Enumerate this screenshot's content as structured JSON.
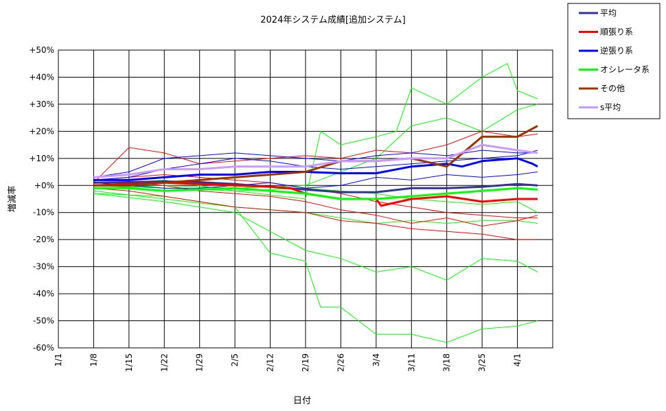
{
  "chart_data": {
    "type": "line",
    "title": "2024年システム成績[追加システム]",
    "xlabel": "日付",
    "ylabel": "増減率",
    "x_tick_labels": [
      "1/1",
      "1/8",
      "1/15",
      "1/22",
      "1/29",
      "2/5",
      "2/12",
      "2/19",
      "2/26",
      "3/4",
      "3/11",
      "3/18",
      "3/25",
      "4/1"
    ],
    "y_tick_labels": [
      "+50%",
      "+40%",
      "+30%",
      "+20%",
      "+10%",
      "+0%",
      "-10%",
      "-20%",
      "-30%",
      "-40%",
      "-50%",
      "-60%"
    ],
    "ylim": [
      -60,
      50
    ],
    "x_range_days": [
      1,
      99
    ],
    "grid": true,
    "legend_position": "top-right-outside",
    "series": [
      {
        "name": "平均",
        "color": "#333399",
        "x": [
          8,
          15,
          22,
          29,
          36,
          43,
          50,
          57,
          64,
          71,
          78,
          85,
          92,
          96
        ],
        "values": [
          1,
          1.2,
          1.5,
          1.2,
          0.5,
          -0.5,
          -1.5,
          -2.5,
          -2.5,
          -1,
          -1,
          -0.5,
          0.5,
          0
        ]
      },
      {
        "name": "順張り系",
        "color": "#ff0000",
        "x": [
          8,
          15,
          22,
          29,
          36,
          43,
          47,
          50,
          57,
          64,
          65,
          71,
          78,
          85,
          92,
          96
        ],
        "values": [
          0,
          0.5,
          1,
          0.5,
          0,
          -0.5,
          -1,
          -3,
          -5,
          -5,
          -7.5,
          -5,
          -4,
          -6,
          -5,
          -5
        ]
      },
      {
        "name": "逆張り系",
        "color": "#0000ff",
        "x": [
          8,
          15,
          22,
          29,
          36,
          43,
          50,
          57,
          64,
          71,
          78,
          81,
          85,
          92,
          95,
          96
        ],
        "values": [
          2,
          2,
          3,
          4,
          4,
          5,
          5,
          4.5,
          4.5,
          7,
          8,
          7,
          9,
          10,
          8,
          7
        ]
      },
      {
        "name": "オシレータ系",
        "color": "#00ff00",
        "x": [
          8,
          15,
          22,
          29,
          36,
          43,
          50,
          57,
          64,
          71,
          78,
          85,
          92,
          96
        ],
        "values": [
          -1,
          -1,
          -2,
          -1.5,
          -1,
          -2,
          -3,
          -5,
          -5,
          -4,
          -3,
          -2,
          -1,
          -1.5
        ]
      },
      {
        "name": "その他",
        "color": "#993300",
        "x": [
          8,
          15,
          22,
          29,
          36,
          43,
          50,
          57,
          64,
          71,
          78,
          85,
          92,
          96
        ],
        "values": [
          0,
          0,
          1,
          2,
          3,
          4,
          5,
          9,
          9,
          10,
          7,
          18,
          18,
          22
        ]
      },
      {
        "name": "s平均",
        "color": "#cc99ff",
        "x": [
          8,
          15,
          22,
          29,
          36,
          43,
          50,
          57,
          64,
          71,
          78,
          85,
          92,
          96
        ],
        "values": [
          3,
          4,
          6,
          6,
          7,
          7,
          7,
          9,
          9,
          10,
          10,
          15,
          13,
          12
        ]
      }
    ],
    "individual_systems": [
      {
        "color": "#00ff00",
        "x": [
          8,
          22,
          36,
          43,
          50,
          53,
          57,
          64,
          71,
          78,
          85,
          92,
          96
        ],
        "values": [
          -2,
          -5,
          -8,
          -25,
          -28,
          -45,
          -45,
          -55,
          -55,
          -58,
          -53,
          -52,
          -50
        ]
      },
      {
        "color": "#00ff00",
        "x": [
          8,
          22,
          36,
          50,
          57,
          64,
          71,
          78,
          85,
          92,
          96
        ],
        "values": [
          -3,
          -6,
          -10,
          -24,
          -27,
          -32,
          -30,
          -35,
          -27,
          -28,
          -32
        ]
      },
      {
        "color": "#00ff00",
        "x": [
          8,
          22,
          36,
          50,
          53,
          57,
          64,
          68,
          71,
          78,
          85,
          90,
          92,
          96
        ],
        "values": [
          0,
          2,
          -2,
          -5,
          20,
          15,
          18,
          20,
          36,
          30,
          40,
          45,
          35,
          32
        ]
      },
      {
        "color": "#00ff00",
        "x": [
          8,
          22,
          36,
          50,
          57,
          64,
          71,
          78,
          85,
          92,
          96
        ],
        "values": [
          -1,
          0,
          -1,
          0,
          5,
          10,
          22,
          25,
          20,
          28,
          30
        ]
      },
      {
        "color": "#00ff00",
        "x": [
          8,
          22,
          36,
          50,
          57,
          64,
          71,
          78,
          85,
          92,
          96
        ],
        "values": [
          -3,
          -4,
          -8,
          -10,
          -12,
          -14,
          -13,
          -14,
          -13,
          -13,
          -14
        ]
      },
      {
        "color": "#00ff00",
        "x": [
          8,
          22,
          36,
          50,
          57,
          64,
          71,
          78,
          85,
          92,
          96
        ],
        "values": [
          0,
          -1,
          -2,
          -1,
          -2,
          -3,
          -5,
          -6,
          -7,
          -6,
          -10
        ]
      },
      {
        "color": "#ff0000",
        "x": [
          8,
          15,
          22,
          29,
          36,
          43,
          50,
          57,
          64,
          71,
          78,
          85,
          92,
          96
        ],
        "values": [
          1,
          14,
          12,
          8,
          9,
          10,
          11,
          10,
          13,
          12,
          15,
          20,
          18,
          19
        ]
      },
      {
        "color": "#ff0000",
        "x": [
          8,
          15,
          22,
          29,
          36,
          43,
          50,
          57,
          64,
          71,
          78,
          85,
          92,
          96
        ],
        "values": [
          -1,
          -2,
          -4,
          -6,
          -8,
          -9,
          -10,
          -13,
          -14,
          -16,
          -17,
          -18,
          -20,
          -20
        ]
      },
      {
        "color": "#ff0000",
        "x": [
          8,
          15,
          22,
          29,
          36,
          43,
          50,
          57,
          64,
          71,
          78,
          85,
          92,
          96
        ],
        "values": [
          0,
          1,
          0,
          -2,
          -3,
          -4,
          -6,
          -9,
          -11,
          -14,
          -12,
          -15,
          -13,
          -11
        ]
      },
      {
        "color": "#ff0000",
        "x": [
          8,
          15,
          22,
          29,
          36,
          43,
          50,
          57,
          64,
          71,
          78,
          85,
          92,
          96
        ],
        "values": [
          2,
          3,
          4,
          3,
          2,
          1,
          -1,
          -3,
          -6,
          -8,
          -10,
          -11,
          -12,
          -12
        ]
      },
      {
        "color": "#0000ff",
        "x": [
          8,
          15,
          22,
          29,
          36,
          43,
          50,
          57,
          64,
          71,
          78,
          85,
          92,
          96
        ],
        "values": [
          3,
          5,
          10,
          11,
          12,
          11,
          10,
          9,
          11,
          12,
          11,
          13,
          12,
          12
        ]
      },
      {
        "color": "#0000ff",
        "x": [
          8,
          15,
          22,
          29,
          36,
          43,
          50,
          57,
          64,
          71,
          78,
          85,
          92,
          96
        ],
        "values": [
          2,
          3,
          6,
          8,
          10,
          9,
          7,
          6,
          7,
          8,
          9,
          10,
          11,
          13
        ]
      },
      {
        "color": "#0000ff",
        "x": [
          8,
          15,
          22,
          29,
          36,
          43,
          50,
          57,
          64,
          71,
          78,
          85,
          92,
          96
        ],
        "values": [
          1,
          0,
          -1,
          -1,
          0,
          1,
          -1,
          0,
          3,
          2,
          4,
          3,
          4,
          5
        ]
      }
    ]
  }
}
